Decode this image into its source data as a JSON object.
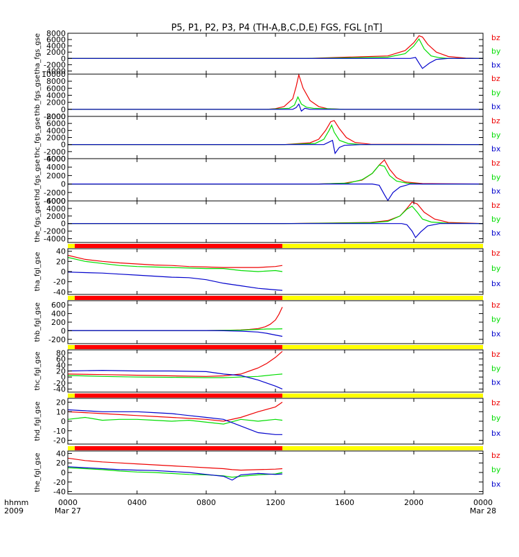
{
  "title": "P5, P1, P2, P3, P4 (TH-A,B,C,D,E) FGS, FGL [nT]",
  "time_axis": {
    "row_labels": [
      "hhmm",
      "2009"
    ],
    "ticks": [
      {
        "t": 0,
        "label": "0000",
        "date": "Mar 27"
      },
      {
        "t": 4,
        "label": "0400",
        "date": ""
      },
      {
        "t": 8,
        "label": "0800",
        "date": ""
      },
      {
        "t": 12,
        "label": "1200",
        "date": ""
      },
      {
        "t": 16,
        "label": "1600",
        "date": ""
      },
      {
        "t": 20,
        "label": "2000",
        "date": ""
      },
      {
        "t": 24,
        "label": "0000",
        "date": "Mar 28"
      }
    ],
    "range_hours": [
      0,
      24
    ]
  },
  "colors": {
    "bx": "#0000cc",
    "by": "#00dd00",
    "bz": "#ee0000",
    "bar_red": "#ff0000",
    "bar_yellow": "#ffff00"
  },
  "legend": [
    "bz",
    "by",
    "bx"
  ],
  "chart_data": [
    {
      "type": "line",
      "ylabel": "tha_fgs_gse",
      "ylim": [
        -5000,
        8000
      ],
      "yticks": [
        8000,
        6000,
        4000,
        2000,
        0,
        -2000,
        -4000
      ],
      "series": [
        {
          "name": "bz",
          "x": [
            0,
            1.8,
            13.8,
            18.5,
            19.5,
            20.0,
            20.3,
            20.5,
            20.8,
            21.3,
            22.0,
            23.0,
            24.0
          ],
          "y": [
            0,
            0,
            0,
            800,
            2500,
            5000,
            7200,
            6800,
            4500,
            2000,
            600,
            100,
            0
          ]
        },
        {
          "name": "by",
          "x": [
            0,
            1.8,
            13.8,
            18.5,
            19.5,
            20.0,
            20.3,
            20.6,
            21.0,
            21.5,
            22.0,
            24.0
          ],
          "y": [
            0,
            0,
            0,
            400,
            1500,
            4000,
            6200,
            3000,
            800,
            200,
            0,
            0
          ]
        },
        {
          "name": "bx",
          "x": [
            0,
            1.8,
            13.8,
            19.8,
            20.1,
            20.3,
            20.5,
            20.9,
            21.3,
            22.0,
            24.0
          ],
          "y": [
            0,
            0,
            0,
            0,
            300,
            -1500,
            -3200,
            -1500,
            -300,
            0,
            0
          ]
        }
      ]
    },
    {
      "type": "line",
      "ylabel": "thb_fgs_gse",
      "ylim": [
        -2000,
        10000
      ],
      "yticks": [
        10000,
        8000,
        6000,
        4000,
        2000,
        0,
        -2000
      ],
      "series": [
        {
          "name": "bz",
          "x": [
            0,
            11.5,
            12.0,
            12.5,
            13.0,
            13.2,
            13.35,
            13.6,
            14.0,
            14.5,
            15.0,
            16.0,
            24.0
          ],
          "y": [
            0,
            0,
            200,
            800,
            3000,
            6500,
            9800,
            6000,
            2500,
            800,
            200,
            0,
            0
          ]
        },
        {
          "name": "by",
          "x": [
            0,
            11.5,
            12.8,
            13.1,
            13.3,
            13.5,
            13.8,
            14.2,
            16.0,
            24.0
          ],
          "y": [
            0,
            0,
            300,
            1200,
            3500,
            1500,
            600,
            300,
            0,
            0
          ]
        },
        {
          "name": "bx",
          "x": [
            0,
            11.5,
            13.0,
            13.2,
            13.35,
            13.5,
            13.7,
            14.0,
            24.0
          ],
          "y": [
            0,
            0,
            0,
            500,
            1500,
            -500,
            300,
            0,
            0
          ]
        }
      ]
    },
    {
      "type": "line",
      "ylabel": "thc_fgs_gse",
      "ylim": [
        -4000,
        8000
      ],
      "yticks": [
        8000,
        6000,
        4000,
        2000,
        0,
        -2000,
        -4000
      ],
      "series": [
        {
          "name": "bz",
          "x": [
            0,
            12.5,
            14.0,
            14.5,
            14.9,
            15.2,
            15.4,
            15.7,
            16.1,
            16.6,
            17.5,
            24.0
          ],
          "y": [
            0,
            0,
            500,
            1500,
            4000,
            6500,
            6800,
            4500,
            2000,
            600,
            100,
            0
          ]
        },
        {
          "name": "by",
          "x": [
            0,
            12.5,
            14.3,
            14.8,
            15.1,
            15.25,
            15.4,
            15.7,
            16.2,
            17.0,
            24.0
          ],
          "y": [
            0,
            0,
            300,
            1500,
            4000,
            5500,
            3500,
            1200,
            300,
            0,
            0
          ]
        },
        {
          "name": "bx",
          "x": [
            0,
            12.5,
            14.8,
            15.1,
            15.3,
            15.45,
            15.7,
            16.0,
            17.0,
            24.0
          ],
          "y": [
            0,
            0,
            0,
            700,
            1200,
            -2500,
            -800,
            -200,
            0,
            0
          ]
        }
      ]
    },
    {
      "type": "line",
      "ylabel": "thd_fgs_gse",
      "ylim": [
        -4000,
        6000
      ],
      "yticks": [
        6000,
        4000,
        2000,
        0,
        -2000,
        -4000
      ],
      "series": [
        {
          "name": "bz",
          "x": [
            0,
            14.5,
            16.0,
            17.0,
            17.6,
            18.0,
            18.3,
            18.6,
            19.0,
            19.5,
            20.5,
            24.0
          ],
          "y": [
            0,
            0,
            200,
            900,
            2500,
            4500,
            5700,
            3500,
            1500,
            500,
            100,
            0
          ]
        },
        {
          "name": "by",
          "x": [
            0,
            14.5,
            16.2,
            17.0,
            17.6,
            18.0,
            18.3,
            18.6,
            19.0,
            19.6,
            20.5,
            24.0
          ],
          "y": [
            0,
            0,
            200,
            1000,
            2500,
            4500,
            4200,
            2000,
            700,
            200,
            0,
            0
          ]
        },
        {
          "name": "bx",
          "x": [
            0,
            14.5,
            17.6,
            18.0,
            18.3,
            18.5,
            18.8,
            19.2,
            19.8,
            24.0
          ],
          "y": [
            0,
            0,
            0,
            -300,
            -2500,
            -3900,
            -2000,
            -700,
            0,
            0
          ]
        }
      ]
    },
    {
      "type": "line",
      "ylabel": "the_fgs_gse",
      "ylim": [
        -5000,
        6000
      ],
      "yticks": [
        6000,
        4000,
        2000,
        0,
        -2000,
        -4000
      ],
      "series": [
        {
          "name": "bz",
          "x": [
            0,
            12.5,
            17.5,
            18.5,
            19.2,
            19.6,
            19.9,
            20.2,
            20.6,
            21.2,
            22.0,
            24.0
          ],
          "y": [
            0,
            0,
            300,
            800,
            2000,
            4000,
            5700,
            5200,
            3000,
            1200,
            300,
            0
          ]
        },
        {
          "name": "by",
          "x": [
            0,
            12.5,
            17.5,
            18.5,
            19.2,
            19.6,
            19.9,
            20.2,
            20.5,
            21.0,
            22.0,
            24.0
          ],
          "y": [
            0,
            0,
            200,
            600,
            2000,
            3800,
            4600,
            3000,
            1200,
            400,
            100,
            0
          ]
        },
        {
          "name": "bx",
          "x": [
            0,
            12.5,
            19.3,
            19.6,
            19.9,
            20.1,
            20.4,
            20.8,
            21.5,
            24.0
          ],
          "y": [
            0,
            0,
            0,
            -300,
            -2000,
            -3700,
            -2200,
            -600,
            0,
            0
          ]
        }
      ]
    },
    {
      "type": "line",
      "ylabel": "tha_fgl_gse",
      "ylim": [
        -45,
        45
      ],
      "yticks": [
        40,
        20,
        0,
        -20,
        -40
      ],
      "series": [
        {
          "name": "bz",
          "x": [
            0,
            1,
            2,
            3,
            4,
            5,
            6,
            7,
            8,
            9,
            10,
            11,
            12,
            12.4
          ],
          "y": [
            32,
            24,
            20,
            17,
            15,
            13,
            12,
            10,
            9,
            8,
            8,
            8,
            10,
            12
          ]
        },
        {
          "name": "by",
          "x": [
            0,
            1,
            2,
            3,
            4,
            5,
            6,
            7,
            8,
            9,
            10,
            11,
            12,
            12.4
          ],
          "y": [
            28,
            20,
            16,
            12,
            10,
            9,
            8,
            7,
            6,
            6,
            2,
            0,
            2,
            0
          ]
        },
        {
          "name": "bx",
          "x": [
            0,
            1,
            2,
            3,
            4,
            5,
            6,
            7,
            8,
            9,
            10,
            11,
            12,
            12.4
          ],
          "y": [
            -1,
            -2,
            -3,
            -5,
            -7,
            -9,
            -11,
            -12,
            -16,
            -23,
            -28,
            -33,
            -36,
            -37
          ]
        }
      ]
    },
    {
      "type": "line",
      "ylabel": "thb_fgl_gse",
      "ylim": [
        -300,
        700
      ],
      "yticks": [
        600,
        400,
        200,
        0,
        -200
      ],
      "series": [
        {
          "name": "bz",
          "x": [
            0,
            4,
            8,
            9,
            10,
            10.5,
            11,
            11.4,
            11.7,
            12.0,
            12.2,
            12.4
          ],
          "y": [
            5,
            5,
            5,
            10,
            20,
            30,
            50,
            90,
            150,
            250,
            380,
            550
          ]
        },
        {
          "name": "by",
          "x": [
            0,
            4,
            8,
            9,
            10,
            11,
            11.5,
            12,
            12.4
          ],
          "y": [
            5,
            5,
            5,
            10,
            15,
            30,
            40,
            40,
            45
          ]
        },
        {
          "name": "bx",
          "x": [
            0,
            4,
            8,
            9,
            10,
            11,
            11.5,
            12,
            12.4
          ],
          "y": [
            5,
            5,
            5,
            0,
            -10,
            -30,
            -60,
            -100,
            -130
          ]
        }
      ]
    },
    {
      "type": "line",
      "ylabel": "thc_fgl_gse",
      "ylim": [
        -50,
        90
      ],
      "yticks": [
        80,
        60,
        40,
        20,
        0,
        -20,
        -40
      ],
      "series": [
        {
          "name": "bz",
          "x": [
            0,
            2,
            4,
            6,
            8,
            9,
            10,
            10.5,
            11,
            11.5,
            12.0,
            12.4
          ],
          "y": [
            10,
            8,
            6,
            4,
            2,
            4,
            10,
            20,
            30,
            45,
            65,
            85
          ]
        },
        {
          "name": "by",
          "x": [
            0,
            2,
            4,
            6,
            8,
            9,
            10,
            11,
            12,
            12.4
          ],
          "y": [
            5,
            2,
            0,
            -1,
            -2,
            -2,
            0,
            2,
            8,
            10
          ]
        },
        {
          "name": "bx",
          "x": [
            0,
            2,
            4,
            6,
            8,
            9,
            10,
            11,
            12,
            12.4
          ],
          "y": [
            20,
            22,
            20,
            20,
            18,
            10,
            5,
            -10,
            -30,
            -40
          ]
        }
      ]
    },
    {
      "type": "line",
      "ylabel": "thd_fgl_gse",
      "ylim": [
        -24,
        24
      ],
      "yticks": [
        20,
        10,
        0,
        -10,
        -20
      ],
      "series": [
        {
          "name": "bz",
          "x": [
            0,
            1,
            2,
            3,
            4,
            5,
            6,
            7,
            8,
            9,
            10,
            11,
            12,
            12.4
          ],
          "y": [
            10,
            9,
            8,
            7,
            6,
            5,
            4,
            3,
            2,
            0,
            4,
            10,
            15,
            20
          ]
        },
        {
          "name": "by",
          "x": [
            0,
            1,
            2,
            3,
            4,
            5,
            6,
            7,
            8,
            9,
            10,
            11,
            12,
            12.4
          ],
          "y": [
            2,
            4,
            1,
            2,
            2,
            1,
            0,
            1,
            -1,
            -3,
            2,
            0,
            2,
            1
          ]
        },
        {
          "name": "bx",
          "x": [
            0,
            1,
            2,
            3,
            4,
            5,
            6,
            7,
            8,
            9,
            10,
            11,
            12,
            12.4
          ],
          "y": [
            12,
            11,
            10,
            10,
            10,
            9,
            8,
            6,
            4,
            2,
            -5,
            -12,
            -14,
            -14
          ]
        }
      ]
    },
    {
      "type": "line",
      "ylabel": "the_fgl_gse",
      "ylim": [
        -45,
        45
      ],
      "yticks": [
        40,
        20,
        0,
        -20,
        -40
      ],
      "series": [
        {
          "name": "bz",
          "x": [
            0,
            1,
            2,
            3,
            4,
            5,
            6,
            7,
            8,
            9,
            9.5,
            10,
            11,
            12,
            12.4
          ],
          "y": [
            30,
            25,
            22,
            20,
            18,
            16,
            14,
            12,
            10,
            8,
            6,
            5,
            6,
            7,
            8
          ]
        },
        {
          "name": "by",
          "x": [
            0,
            1,
            2,
            3,
            4,
            5,
            6,
            7,
            8,
            9,
            9.5,
            10,
            11,
            12,
            12.4
          ],
          "y": [
            10,
            8,
            6,
            3,
            1,
            0,
            -2,
            -4,
            -5,
            -7,
            -10,
            -8,
            -5,
            -3,
            0
          ]
        },
        {
          "name": "bx",
          "x": [
            0,
            1,
            2,
            3,
            4,
            5,
            6,
            7,
            8,
            9,
            9.5,
            10,
            11,
            12,
            12.4
          ],
          "y": [
            12,
            10,
            8,
            6,
            5,
            4,
            2,
            0,
            -4,
            -8,
            -16,
            -5,
            -2,
            -4,
            -3
          ]
        }
      ]
    }
  ]
}
